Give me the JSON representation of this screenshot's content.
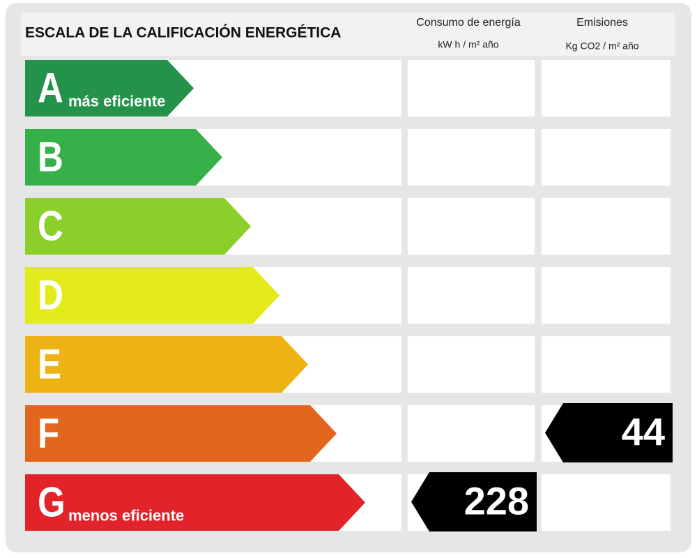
{
  "header": {
    "title": "ESCALA DE LA CALIFICACIÓN ENERGÉTICA",
    "columns": [
      {
        "title": "Consumo de energía",
        "unit": "kW h / m² año"
      },
      {
        "title": "Emisiones",
        "unit": "Kg CO2 / m² año"
      }
    ]
  },
  "ratings": [
    {
      "letter": "A",
      "note": "más eficiente",
      "color": "#24924a"
    },
    {
      "letter": "B",
      "color": "#36b14a"
    },
    {
      "letter": "C",
      "color": "#8ccf2a"
    },
    {
      "letter": "D",
      "color": "#e3ec1a"
    },
    {
      "letter": "E",
      "color": "#edb314"
    },
    {
      "letter": "F",
      "color": "#e2661e"
    },
    {
      "letter": "G",
      "note": "menos eficiente",
      "color": "#e3232a"
    }
  ],
  "consumption": {
    "rating": "G",
    "value": 228
  },
  "emissions": {
    "rating": "F",
    "value": 44
  }
}
